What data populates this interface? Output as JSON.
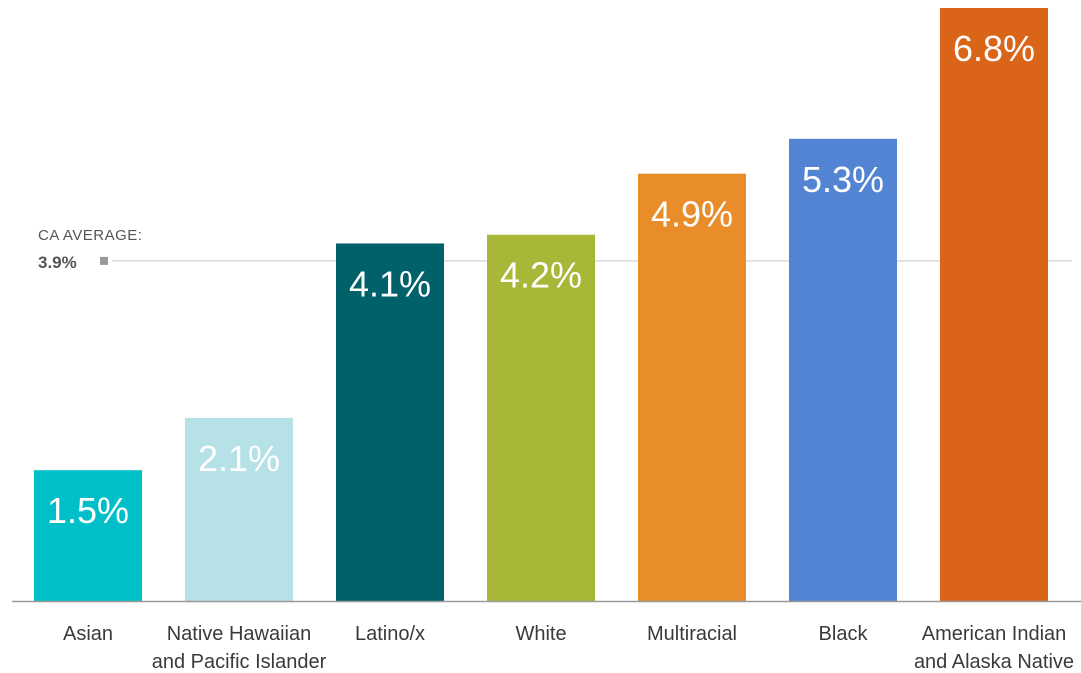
{
  "chart_data": {
    "type": "bar",
    "categories": [
      [
        "Asian"
      ],
      [
        "Native Hawaiian",
        "and Pacific Islander"
      ],
      [
        "Latino/x"
      ],
      [
        "White"
      ],
      [
        "Multiracial"
      ],
      [
        "Black"
      ],
      [
        "American Indian",
        "and Alaska Native"
      ]
    ],
    "values": [
      1.5,
      2.1,
      4.1,
      4.2,
      4.9,
      5.3,
      6.8
    ],
    "value_labels": [
      "1.5%",
      "2.1%",
      "4.1%",
      "4.2%",
      "4.9%",
      "5.3%",
      "6.8%"
    ],
    "colors": [
      "#00bfc9",
      "#b6e1e7",
      "#00616a",
      "#a8b737",
      "#e98d2a",
      "#5384d4",
      "#da6519"
    ],
    "reference_line": {
      "value": 3.9,
      "caption": "CA AVERAGE:",
      "value_label": "3.9%",
      "color": "#d9d9d9",
      "marker_color": "#9a9a9a"
    },
    "ylim": [
      0,
      6.8
    ],
    "axis_color": "#9a9a9a",
    "grid": false,
    "legend": "none"
  }
}
